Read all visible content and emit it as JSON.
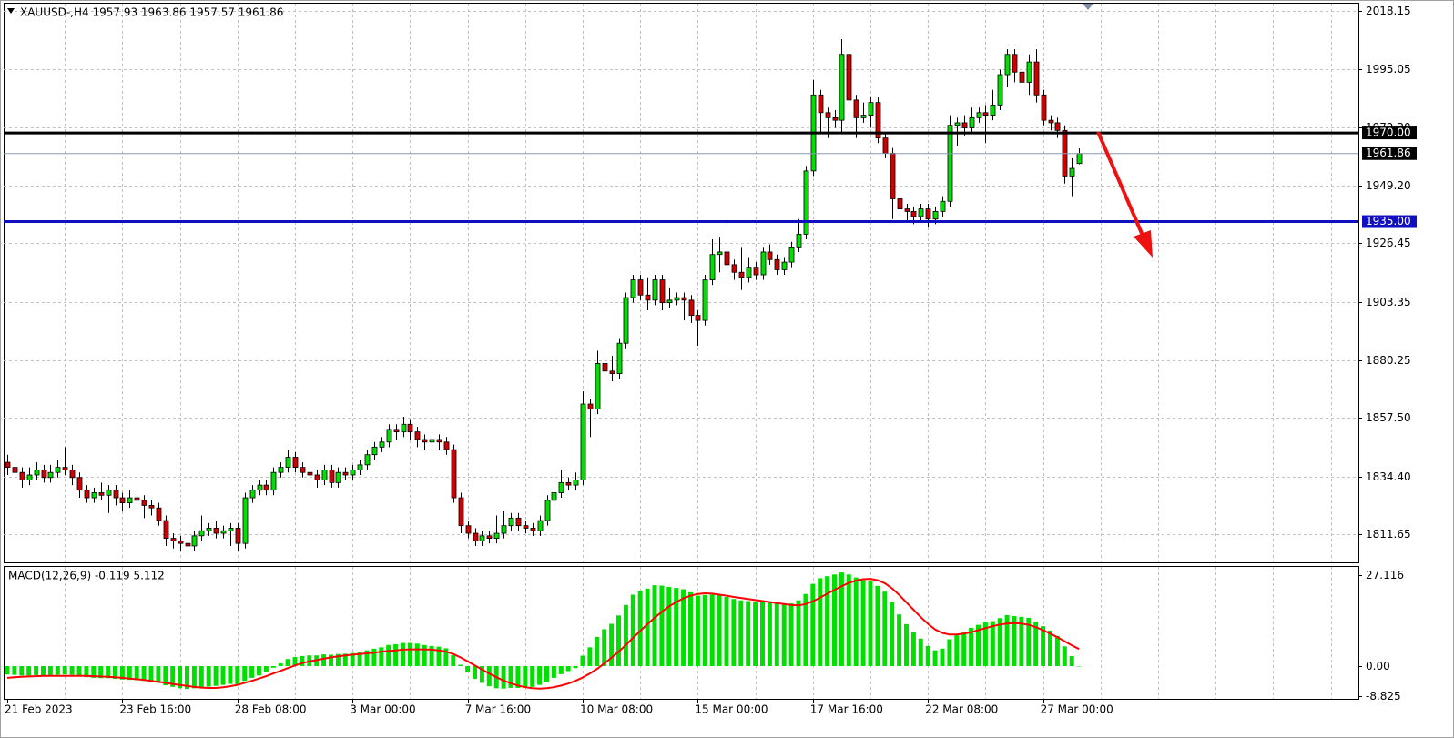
{
  "chart_data": [
    {
      "type": "candlestick",
      "title": "XAUUSD-,H4  1957.93 1963.86 1957.57 1961.86",
      "categories": [
        "21 Feb 2023",
        null,
        null,
        null,
        null,
        null,
        null,
        null,
        null,
        null,
        null,
        null,
        null,
        null,
        null,
        null,
        "23 Feb 16:00",
        null,
        null,
        null,
        null,
        null,
        null,
        null,
        null,
        null,
        null,
        null,
        null,
        null,
        null,
        null,
        "28 Feb 08:00",
        null,
        null,
        null,
        null,
        null,
        null,
        null,
        null,
        null,
        null,
        null,
        null,
        null,
        null,
        null,
        "3 Mar 00:00",
        null,
        null,
        null,
        null,
        null,
        null,
        null,
        null,
        null,
        null,
        null,
        null,
        null,
        null,
        null,
        "7 Mar 16:00",
        null,
        null,
        null,
        null,
        null,
        null,
        null,
        null,
        null,
        null,
        null,
        null,
        null,
        null,
        null,
        "10 Mar 08:00",
        null,
        null,
        null,
        null,
        null,
        null,
        null,
        null,
        null,
        null,
        null,
        null,
        null,
        null,
        null,
        "15 Mar 00:00",
        null,
        null,
        null,
        null,
        null,
        null,
        null,
        null,
        null,
        null,
        null,
        null,
        null,
        null,
        null,
        "17 Mar 16:00",
        null,
        null,
        null,
        null,
        null,
        null,
        null,
        null,
        null,
        null,
        null,
        null,
        null,
        null,
        null,
        "22 Mar 08:00",
        null,
        null,
        null,
        null,
        null,
        null,
        null,
        null,
        null,
        null,
        null,
        null,
        null,
        null,
        null,
        "27 Mar 00:00",
        null,
        null,
        null,
        null,
        null
      ],
      "open": [
        1840,
        1838,
        1836,
        1833,
        1835,
        1837,
        1834,
        1836,
        1838,
        1837,
        1834,
        1829,
        1826,
        1828,
        1827,
        1829,
        1826,
        1824,
        1826,
        1825,
        1823,
        1822,
        1817,
        1810,
        1809,
        1808,
        1807,
        1811,
        1813,
        1814,
        1812,
        1813,
        1814,
        1808,
        1826,
        1829,
        1831,
        1829,
        1836,
        1838,
        1842,
        1838,
        1836,
        1835,
        1833,
        1837,
        1832,
        1836,
        1835,
        1837,
        1839,
        1843,
        1846,
        1848,
        1853,
        1852,
        1855,
        1852,
        1849,
        1848,
        1849,
        1848,
        1845,
        1826,
        1815,
        1812,
        1809,
        1811,
        1810,
        1812,
        1815,
        1818,
        1815,
        1814,
        1813,
        1817,
        1825,
        1828,
        1832,
        1831,
        1833,
        1863,
        1861,
        1879,
        1876,
        1875,
        1887,
        1905,
        1912,
        1906,
        1904,
        1912,
        1903,
        1904,
        1905,
        1904,
        1898,
        1896,
        1912,
        1922,
        1923,
        1918,
        1915,
        1913,
        1917,
        1914,
        1923,
        1920,
        1916,
        1919,
        1925,
        1930,
        1955,
        1985,
        1978,
        1976,
        1975,
        2001,
        1983,
        1976,
        1977,
        1982,
        1968,
        1962,
        1944,
        1940,
        1939,
        1937,
        1940,
        1936,
        1939,
        1943,
        1973,
        1974,
        1972,
        1976,
        1978,
        1977,
        1981,
        1993,
        2001,
        1994,
        1990,
        1998,
        1985,
        1975,
        1974,
        1971,
        1953,
        1957.93
      ],
      "high": [
        1843,
        1840,
        1838,
        1838,
        1840,
        1839,
        1839,
        1841,
        1846,
        1839,
        1836,
        1831,
        1830,
        1832,
        1831,
        1831,
        1828,
        1829,
        1828,
        1827,
        1825,
        1824,
        1819,
        1812,
        1811,
        1810,
        1813,
        1819,
        1816,
        1817,
        1815,
        1816,
        1816,
        1828,
        1831,
        1833,
        1833,
        1838,
        1840,
        1845,
        1844,
        1840,
        1838,
        1837,
        1839,
        1839,
        1838,
        1838,
        1839,
        1841,
        1845,
        1848,
        1850,
        1855,
        1855,
        1858,
        1857,
        1854,
        1851,
        1851,
        1851,
        1850,
        1847,
        1828,
        1817,
        1814,
        1813,
        1813,
        1819,
        1821,
        1820,
        1820,
        1817,
        1816,
        1819,
        1827,
        1838,
        1837,
        1834,
        1836,
        1868,
        1865,
        1884,
        1885,
        1882,
        1889,
        1907,
        1914,
        1914,
        1913,
        1914,
        1914,
        1909,
        1907,
        1907,
        1906,
        1900,
        1914,
        1928,
        1929,
        1936,
        1920,
        1925,
        1921,
        1919,
        1925,
        1926,
        1922,
        1921,
        1927,
        1936,
        1957,
        1991,
        1987,
        1980,
        1979,
        2007,
        2005,
        1985,
        1982,
        1984,
        1984,
        1970,
        1964,
        1946,
        1942,
        1941,
        1942,
        1942,
        1941,
        1945,
        1977,
        1976,
        1977,
        1980,
        1980,
        1981,
        1987,
        1995,
        2003,
        2003,
        1996,
        2001,
        2003,
        1987,
        1977,
        1976,
        1973,
        1960,
        1963.86
      ],
      "low": [
        1835,
        1833,
        1830,
        1831,
        1833,
        1832,
        1832,
        1834,
        1835,
        1831,
        1826,
        1824,
        1824,
        1825,
        1820,
        1823,
        1821,
        1822,
        1822,
        1818,
        1819,
        1815,
        1807,
        1806,
        1805,
        1804,
        1805,
        1809,
        1811,
        1810,
        1810,
        1807,
        1805,
        1806,
        1824,
        1827,
        1827,
        1827,
        1834,
        1836,
        1836,
        1834,
        1832,
        1830,
        1831,
        1830,
        1830,
        1833,
        1833,
        1835,
        1837,
        1841,
        1844,
        1846,
        1849,
        1850,
        1849,
        1846,
        1845,
        1845,
        1845,
        1843,
        1824,
        1812,
        1810,
        1807,
        1807,
        1808,
        1808,
        1810,
        1813,
        1813,
        1812,
        1811,
        1811,
        1815,
        1823,
        1826,
        1829,
        1829,
        1831,
        1850,
        1859,
        1873,
        1872,
        1873,
        1885,
        1903,
        1904,
        1900,
        1902,
        1900,
        1901,
        1902,
        1896,
        1895,
        1886,
        1894,
        1910,
        1915,
        1912,
        1912,
        1908,
        1911,
        1912,
        1912,
        1918,
        1914,
        1914,
        1917,
        1923,
        1928,
        1953,
        1970,
        1968,
        1972,
        1970,
        1980,
        1968,
        1974,
        1972,
        1966,
        1960,
        1936,
        1938,
        1935,
        1934,
        1935,
        1933,
        1934,
        1937,
        1941,
        1965,
        1969,
        1970,
        1974,
        1966,
        1975,
        1979,
        1988,
        1990,
        1987,
        1985,
        1982,
        1973,
        1971,
        1968,
        1950,
        1945,
        1957.57
      ],
      "close": [
        1838,
        1836,
        1833,
        1835,
        1837,
        1834,
        1836,
        1838,
        1837,
        1834,
        1829,
        1826,
        1828,
        1827,
        1829,
        1826,
        1824,
        1826,
        1825,
        1823,
        1822,
        1817,
        1810,
        1809,
        1808,
        1807,
        1811,
        1813,
        1814,
        1812,
        1813,
        1814,
        1808,
        1826,
        1829,
        1831,
        1829,
        1836,
        1838,
        1842,
        1838,
        1836,
        1835,
        1833,
        1837,
        1832,
        1836,
        1835,
        1837,
        1839,
        1843,
        1846,
        1848,
        1853,
        1852,
        1855,
        1852,
        1849,
        1848,
        1849,
        1848,
        1845,
        1826,
        1815,
        1812,
        1809,
        1811,
        1810,
        1812,
        1815,
        1818,
        1815,
        1814,
        1813,
        1817,
        1825,
        1828,
        1832,
        1831,
        1833,
        1863,
        1861,
        1879,
        1876,
        1875,
        1887,
        1905,
        1912,
        1906,
        1904,
        1912,
        1903,
        1904,
        1905,
        1904,
        1898,
        1896,
        1912,
        1922,
        1923,
        1918,
        1915,
        1913,
        1917,
        1914,
        1923,
        1920,
        1916,
        1919,
        1925,
        1930,
        1955,
        1985,
        1978,
        1976,
        1975,
        2001,
        1983,
        1976,
        1977,
        1982,
        1968,
        1962,
        1944,
        1940,
        1939,
        1937,
        1940,
        1936,
        1939,
        1943,
        1973,
        1974,
        1972,
        1976,
        1978,
        1977,
        1981,
        1993,
        2001,
        1994,
        1990,
        1998,
        1985,
        1975,
        1974,
        1971,
        1953,
        1956,
        1961.86
      ],
      "up_color": "#00e000",
      "down_color": "#d00000",
      "wick_color": "#000000",
      "ylim": [
        1800.52,
        2021.38
      ],
      "yticks": [
        2018.15,
        1995.05,
        {
          "value": 1972.3,
          "label": "1972.30"
        },
        {
          "value": 1949.2,
          "label": "1949.20"
        },
        1926.45,
        1903.35,
        1880.25,
        {
          "value": 1857.5,
          "label": "1857.50"
        },
        {
          "value": 1834.4,
          "label": "1834.40"
        },
        1811.65
      ],
      "grid": true,
      "levels": [
        {
          "value": 1961.86,
          "label": "1961.86",
          "line_color": "#8c9bb0",
          "box_color": "#000000"
        },
        {
          "value": 1970,
          "label": "1970.00",
          "line_color": "#000000",
          "box_color": "#000000"
        },
        {
          "value": 1935,
          "label": "1935.00",
          "line_color": "#1010c0",
          "box_color": "#1010c0"
        }
      ]
    },
    {
      "type": "macd",
      "title": "MACD(12,26,9) -0.119 5.112",
      "series": [
        {
          "type": "bar",
          "color": "#00e000",
          "values": [
            -2.5,
            -2.6,
            -2.8,
            -2.8,
            -2.7,
            -2.8,
            -2.8,
            -2.6,
            -2.5,
            -2.6,
            -2.9,
            -3.3,
            -3.5,
            -3.6,
            -3.6,
            -3.8,
            -4.0,
            -4.1,
            -4.2,
            -4.4,
            -4.6,
            -5.0,
            -5.7,
            -6.2,
            -6.6,
            -6.8,
            -6.6,
            -6.4,
            -6.1,
            -5.9,
            -5.6,
            -5.3,
            -5.4,
            -4.4,
            -3.5,
            -2.8,
            -1.8,
            -0.5,
            0.8,
            2.1,
            2.7,
            3.0,
            3.2,
            3.2,
            3.5,
            3.4,
            3.6,
            3.7,
            3.9,
            4.2,
            4.7,
            5.2,
            5.6,
            6.3,
            6.5,
            6.9,
            6.9,
            6.7,
            6.3,
            6.0,
            5.8,
            5.3,
            3.2,
            0.4,
            -1.9,
            -3.8,
            -5.0,
            -6.0,
            -6.6,
            -6.7,
            -6.5,
            -6.5,
            -6.4,
            -6.2,
            -5.6,
            -4.6,
            -3.5,
            -2.4,
            -1.5,
            -0.6,
            3.1,
            5.6,
            8.7,
            11.0,
            12.6,
            15.1,
            18.2,
            21.3,
            22.5,
            23.1,
            24.1,
            24.0,
            23.6,
            23.3,
            22.9,
            22.0,
            21.0,
            21.2,
            21.3,
            21.2,
            20.6,
            20.0,
            19.6,
            19.4,
            19.2,
            19.3,
            19.0,
            18.6,
            18.5,
            18.7,
            19.6,
            21.5,
            24.5,
            26.2,
            26.8,
            27.3,
            27.9,
            27.3,
            26.4,
            25.6,
            25.4,
            23.9,
            22.2,
            19.1,
            15.4,
            12.5,
            10.1,
            8.2,
            6.0,
            4.7,
            5.2,
            8.0,
            9.2,
            10.0,
            11.4,
            12.3,
            13.0,
            13.4,
            14.3,
            15.2,
            14.9,
            14.7,
            14.4,
            13.3,
            11.9,
            10.6,
            9.0,
            5.9,
            3.0,
            -0.119
          ]
        },
        {
          "type": "line",
          "color": "#ff0000",
          "values": [
            -3.5,
            -3.3,
            -3.2,
            -3.1,
            -3.0,
            -2.9,
            -2.9,
            -2.9,
            -2.9,
            -2.9,
            -2.9,
            -2.9,
            -3.0,
            -3.1,
            -3.2,
            -3.3,
            -3.5,
            -3.7,
            -3.9,
            -4.1,
            -4.4,
            -4.7,
            -5.0,
            -5.3,
            -5.6,
            -5.9,
            -6.2,
            -6.4,
            -6.5,
            -6.5,
            -6.3,
            -6.0,
            -5.6,
            -5.0,
            -4.4,
            -3.7,
            -3.0,
            -2.2,
            -1.4,
            -0.6,
            0.2,
            0.9,
            1.4,
            1.8,
            2.2,
            2.6,
            2.9,
            3.2,
            3.4,
            3.6,
            3.8,
            4.0,
            4.3,
            4.5,
            4.7,
            4.9,
            5.0,
            5.0,
            5.0,
            4.9,
            4.7,
            4.3,
            3.6,
            2.6,
            1.4,
            0.2,
            -1.0,
            -2.2,
            -3.3,
            -4.3,
            -5.1,
            -5.8,
            -6.3,
            -6.6,
            -6.7,
            -6.6,
            -6.3,
            -5.8,
            -5.2,
            -4.4,
            -3.4,
            -2.2,
            -0.8,
            0.8,
            2.5,
            4.3,
            6.3,
            8.4,
            10.5,
            12.5,
            14.4,
            16.2,
            17.8,
            19.1,
            20.2,
            21.0,
            21.5,
            21.7,
            21.6,
            21.3,
            21.0,
            20.6,
            20.3,
            20.0,
            19.7,
            19.4,
            19.1,
            18.8,
            18.5,
            18.2,
            18.1,
            18.5,
            19.3,
            20.4,
            21.6,
            22.7,
            23.8,
            24.8,
            25.5,
            25.9,
            26.0,
            25.6,
            24.7,
            23.2,
            21.2,
            19.0,
            16.8,
            14.6,
            12.6,
            10.9,
            9.9,
            9.4,
            9.4,
            9.7,
            10.1,
            10.7,
            11.3,
            11.9,
            12.4,
            12.7,
            12.8,
            12.7,
            12.3,
            11.6,
            10.7,
            9.7,
            8.6,
            7.4,
            6.2,
            5.112
          ]
        }
      ],
      "ylim": [
        -9.76,
        29.83
      ],
      "yticks": [
        27.116,
        {
          "value": 0,
          "label": "0.00"
        },
        -8.825
      ]
    }
  ]
}
